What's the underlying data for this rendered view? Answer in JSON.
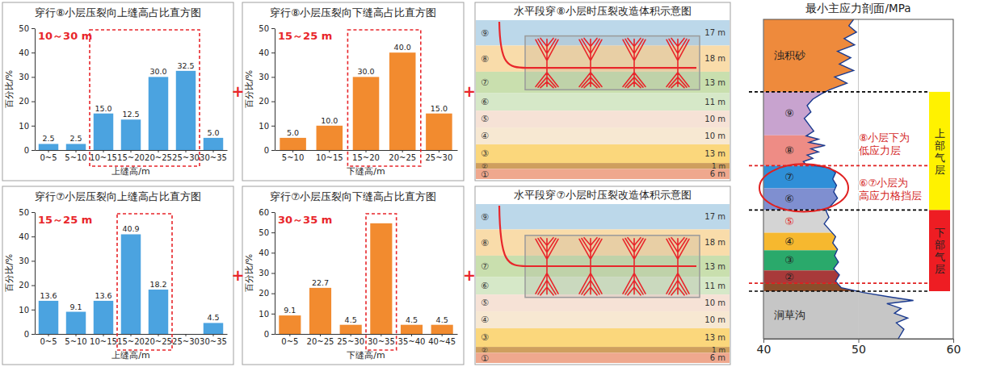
{
  "plus": "+",
  "chart_data": [
    {
      "type": "bar",
      "title": "穿行⑧小层压裂向上缝高占比直方图",
      "x_label": "上缝高/m",
      "y_label": "百分比/%",
      "categories": [
        "0~5",
        "5~10",
        "10~15",
        "15~20",
        "20~25",
        "25~30",
        "30~35"
      ],
      "values": [
        2.5,
        2.5,
        15,
        12.5,
        30,
        32.5,
        5
      ],
      "value_labels": [
        "2.5",
        "2.5",
        "15.0",
        "12.5",
        "30.0",
        "32.5",
        "5.0"
      ],
      "color": "#4ba3e0",
      "ylim": [
        0,
        50
      ],
      "yticks": [
        0,
        10,
        20,
        30,
        40,
        50
      ],
      "data_labels": true,
      "annotations": [
        {
          "text": "10～30 m",
          "range": [
            2,
            5
          ]
        }
      ]
    },
    {
      "type": "bar",
      "title": "穿行⑧小层压裂向下缝高占比直方图",
      "x_label": "下缝高/m",
      "y_label": "百分比/%",
      "categories": [
        "5~10",
        "10~15",
        "15~20",
        "20~25",
        "25~30"
      ],
      "values": [
        5,
        10,
        30,
        40,
        15
      ],
      "value_labels": [
        "5.0",
        "10.0",
        "30.0",
        "40.0",
        "15.0"
      ],
      "color": "#f28b2f",
      "ylim": [
        0,
        50
      ],
      "yticks": [
        0,
        10,
        20,
        30,
        40,
        50
      ],
      "data_labels": true,
      "annotations": [
        {
          "text": "15～25 m",
          "range": [
            2,
            3
          ]
        }
      ]
    },
    {
      "type": "bar",
      "title": "穿行⑦小层压裂向上缝高占比直方图",
      "x_label": "上缝高/m",
      "y_label": "百分比/%",
      "categories": [
        "0~5",
        "5~10",
        "10~15",
        "15~20",
        "20~25",
        "25~30",
        "30~35"
      ],
      "values": [
        13.6,
        9.1,
        13.6,
        40.9,
        18.2,
        0,
        4.5
      ],
      "value_labels": [
        "13.6",
        "9.1",
        "13.6",
        "40.9",
        "18.2",
        null,
        "4.5"
      ],
      "color": "#4ba3e0",
      "ylim": [
        0,
        50
      ],
      "yticks": [
        0,
        10,
        20,
        30,
        40,
        50
      ],
      "data_labels": true,
      "annotations": [
        {
          "text": "15～25 m",
          "range": [
            3,
            4
          ]
        }
      ]
    },
    {
      "type": "bar",
      "title": "穿行⑦小层压裂向下缝高占比直方图",
      "x_label": "下缝高/m",
      "y_label": "百分比/%",
      "categories": [
        "0~5",
        "20~25",
        "25~30",
        "30~35",
        "35~40",
        "40~45"
      ],
      "values": [
        9.1,
        22.7,
        4.5,
        54.5,
        4.5,
        4.5
      ],
      "value_labels": [
        "9.1",
        "22.7",
        "4.5",
        null,
        "4.5",
        "4.5"
      ],
      "color": "#f28b2f",
      "ylim": [
        0,
        60
      ],
      "yticks": [
        0,
        10,
        20,
        30,
        40,
        50,
        60
      ],
      "data_labels": true,
      "annotations": [
        {
          "text": "30～35 m",
          "range": [
            3,
            3
          ]
        }
      ]
    },
    {
      "type": "line",
      "title": "最小主应力剖面/MPa",
      "color": "#1a3a8f",
      "xlim": [
        40,
        60
      ],
      "xticks": [
        40,
        50,
        60
      ],
      "ylim": [
        0,
        100
      ],
      "tick_labels": "x",
      "grid": true,
      "x": [
        49.5,
        49.0,
        49.8,
        48.5,
        49.6,
        47.8,
        49.2,
        48.0,
        49.5,
        47.5,
        48.8,
        47.0,
        46.0,
        45.2,
        44.6,
        45.0,
        44.3,
        44.8,
        45.3,
        44.5,
        45.8,
        44.8,
        46.5,
        45.0,
        45.8,
        44.6,
        45.2,
        44.2,
        44.5,
        47.0,
        47.6,
        47.3,
        47.7,
        47.4,
        47.8,
        47.2,
        46.6,
        46.9,
        46.4,
        47.0,
        47.6,
        47.3,
        47.8,
        47.5,
        47.9,
        47.4,
        48.0,
        47.6,
        48.2,
        50.5,
        53.5,
        55.8,
        53.0,
        54.5,
        53.8,
        55.2,
        54.0,
        54.8,
        54.2
      ],
      "y": [
        0,
        2,
        4,
        6,
        8,
        10,
        12,
        14,
        16,
        18,
        20,
        22,
        23.5,
        25,
        27,
        29,
        31,
        33,
        35,
        36.5,
        37.5,
        38.5,
        39.5,
        40.5,
        41.5,
        42.5,
        43.5,
        44.5,
        45.5,
        46.5,
        48,
        50,
        52,
        54,
        56,
        58,
        60,
        62,
        64,
        66,
        68,
        70,
        72,
        74,
        76,
        78,
        80,
        82,
        84,
        85.5,
        87,
        88,
        89,
        90.5,
        92,
        93.5,
        95,
        97,
        100
      ],
      "layers": [
        {
          "label": "浊积砂",
          "top": 0,
          "bottom": 22.7,
          "color": "#ee8a3c"
        },
        {
          "label": "⑨",
          "top": 22.7,
          "bottom": 36.3,
          "color": "#c8a3cf"
        },
        {
          "label": "⑧",
          "top": 36.3,
          "bottom": 45.8,
          "color": "#ee8c85"
        },
        {
          "label": "⑦",
          "top": 45.8,
          "bottom": 52.9,
          "color": "#2f8fd8"
        },
        {
          "label": "⑥",
          "top": 52.9,
          "bottom": 59.7,
          "color": "#7f8fd0"
        },
        {
          "label": "⑤",
          "top": 59.7,
          "bottom": 66.8,
          "color": "#d4d4d4",
          "label_color": "#e02020"
        },
        {
          "label": "④",
          "top": 66.8,
          "bottom": 72.3,
          "color": "#f6b82f"
        },
        {
          "label": "③",
          "top": 72.3,
          "bottom": 78.6,
          "color": "#2aa96b"
        },
        {
          "label": "②",
          "top": 78.6,
          "bottom": 82.6,
          "color": "#a83a3a"
        },
        {
          "label": null,
          "top": 82.6,
          "bottom": 85.1,
          "color": "#8b4d2b"
        },
        {
          "label": "涧草沟",
          "top": 85.1,
          "bottom": 100,
          "color": "#c6c6c6"
        }
      ],
      "boundaries": [
        {
          "y": 22.7,
          "color": "#000000",
          "line_style": "dashed"
        },
        {
          "y": 45.8,
          "color": "#e02020",
          "line_style": "dashed"
        },
        {
          "y": 59.7,
          "color": "#000000",
          "line_style": "dashed"
        },
        {
          "y": 82.6,
          "color": "#e02020",
          "line_style": "dashed"
        },
        {
          "y": 85.1,
          "color": "#000000",
          "line_style": "dashed"
        }
      ],
      "gas_layers": [
        {
          "label": "上部气层",
          "top": 22.7,
          "bottom": 59.7,
          "color": "#fff200"
        },
        {
          "label": "下部气层",
          "top": 59.7,
          "bottom": 85.1,
          "color": "#ee1d23"
        }
      ],
      "annotations": [
        {
          "lines": [
            "⑧小层下为",
            "低应力层"
          ],
          "y": 39
        },
        {
          "lines": [
            "⑥⑦小层为",
            "高应力格挡层"
          ],
          "y": 53,
          "highlight": [
            3,
            4
          ]
        }
      ]
    }
  ],
  "diagrams": [
    {
      "title": "水平段穿⑧小层时压裂改造体积示意图",
      "target_layer": 1,
      "layers": [
        {
          "label": "⑨",
          "thickness": "17 m",
          "color": "#bcd8ea"
        },
        {
          "label": "⑧",
          "thickness": "18 m",
          "color": "#f9dcaa"
        },
        {
          "label": "⑦",
          "thickness": "13 m",
          "color": "#c9dfae"
        },
        {
          "label": "⑥",
          "thickness": "11 m",
          "color": "#d6e8c8"
        },
        {
          "label": "⑤",
          "thickness": "10 m",
          "color": "#f6e2d6"
        },
        {
          "label": "④",
          "thickness": "10 m",
          "color": "#f7e8d2"
        },
        {
          "label": "③",
          "thickness": "13 m",
          "color": "#fbd77c"
        },
        {
          "label": "②",
          "thickness": "1 m",
          "color": "#cf9f5e"
        },
        {
          "label": "①",
          "thickness": "6 m",
          "color": "#efa88e"
        }
      ]
    },
    {
      "title": "水平段穿⑦小层时压裂改造体积示意图",
      "target_layer": 2,
      "layers": [
        {
          "label": "⑨",
          "thickness": "17 m",
          "color": "#bcd8ea"
        },
        {
          "label": "⑧",
          "thickness": "18 m",
          "color": "#f9dcaa"
        },
        {
          "label": "⑦",
          "thickness": "13 m",
          "color": "#c9dfae"
        },
        {
          "label": "⑥",
          "thickness": "11 m",
          "color": "#d6e8c8"
        },
        {
          "label": "⑤",
          "thickness": "10 m",
          "color": "#f6e2d6"
        },
        {
          "label": "④",
          "thickness": "10 m",
          "color": "#f7e8d2"
        },
        {
          "label": "③",
          "thickness": "13 m",
          "color": "#fbd77c"
        },
        {
          "label": "②",
          "thickness": "1 m",
          "color": "#cf9f5e"
        },
        {
          "label": "①",
          "thickness": "6 m",
          "color": "#efa88e"
        }
      ]
    }
  ]
}
